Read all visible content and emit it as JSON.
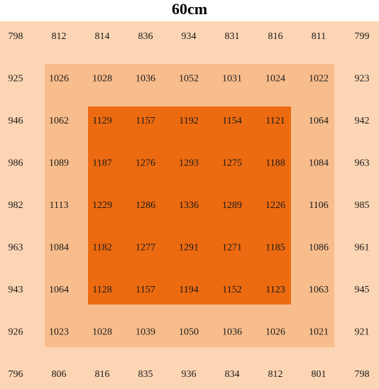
{
  "title": "60cm",
  "table": {
    "rows": [
      [
        798,
        812,
        814,
        836,
        934,
        831,
        816,
        811,
        799
      ],
      [
        925,
        1026,
        1028,
        1036,
        1052,
        1031,
        1024,
        1022,
        923
      ],
      [
        946,
        1062,
        1129,
        1157,
        1192,
        1154,
        1121,
        1064,
        942
      ],
      [
        986,
        1089,
        1187,
        1276,
        1293,
        1275,
        1188,
        1084,
        963
      ],
      [
        982,
        1113,
        1229,
        1286,
        1336,
        1289,
        1226,
        1106,
        985
      ],
      [
        963,
        1084,
        1182,
        1277,
        1291,
        1271,
        1185,
        1086,
        961
      ],
      [
        943,
        1064,
        1128,
        1157,
        1194,
        1152,
        1123,
        1063,
        945
      ],
      [
        926,
        1023,
        1028,
        1039,
        1050,
        1036,
        1026,
        1021,
        921
      ],
      [
        796,
        806,
        816,
        835,
        936,
        834,
        812,
        801,
        798
      ]
    ]
  }
}
